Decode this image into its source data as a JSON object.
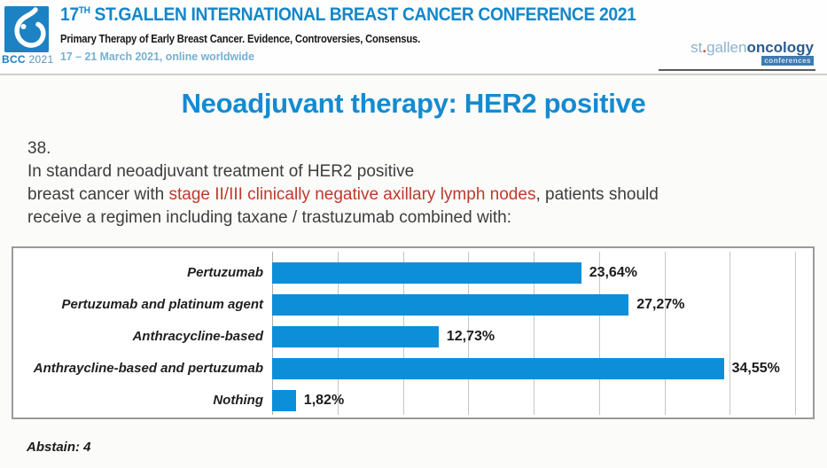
{
  "header": {
    "logo_badge": {
      "bcc": "BCC",
      "year": " 2021"
    },
    "title_num": "17",
    "title_sup": "TH",
    "title_rest": " ST.GALLEN INTERNATIONAL BREAST CANCER CONFERENCE 2021",
    "subtitle": "Primary Therapy of Early Breast Cancer. Evidence, Controversies, Consensus.",
    "dates": "17 – 21 March 2021, online worldwide",
    "brand": {
      "st": "st",
      "dot": ".",
      "gallen": "gallen",
      "oncology": "oncology",
      "badge": "conferences"
    }
  },
  "slide": {
    "title": "Neoadjuvant therapy: HER2 positive",
    "question_number": "38.",
    "q_line1": "In standard neoadjuvant treatment of HER2 positive",
    "q_line2_pre": "breast cancer with ",
    "q_line2_red": "stage II/III clinically negative axillary lymph nodes",
    "q_line2_post": ", patients should",
    "q_line3": "receive a regimen including taxane / trastuzumab combined with:",
    "abstain_label": "Abstain: 4"
  },
  "chart_data": {
    "type": "bar",
    "orientation": "horizontal",
    "title": "",
    "categories": [
      "Pertuzumab",
      "Pertuzumab and platinum agent",
      "Anthracycline-based",
      "Anthraycline-based and pertuzumab",
      "Nothing"
    ],
    "values": [
      23.64,
      27.27,
      12.73,
      34.55,
      1.82
    ],
    "value_labels": [
      "23,64%",
      "27,27%",
      "12,73%",
      "34,55%",
      "1,82%"
    ],
    "xlim": [
      0,
      40
    ],
    "gridline_step": 5,
    "grid": true,
    "legend": false,
    "bar_color": "#0d8ed9"
  },
  "colors": {
    "accent_blue": "#1389cd",
    "header_date_blue": "#74b0d6",
    "highlight_red": "#c0392b",
    "bar_blue": "#0d8ed9",
    "text_dark": "#3d3d3d"
  }
}
